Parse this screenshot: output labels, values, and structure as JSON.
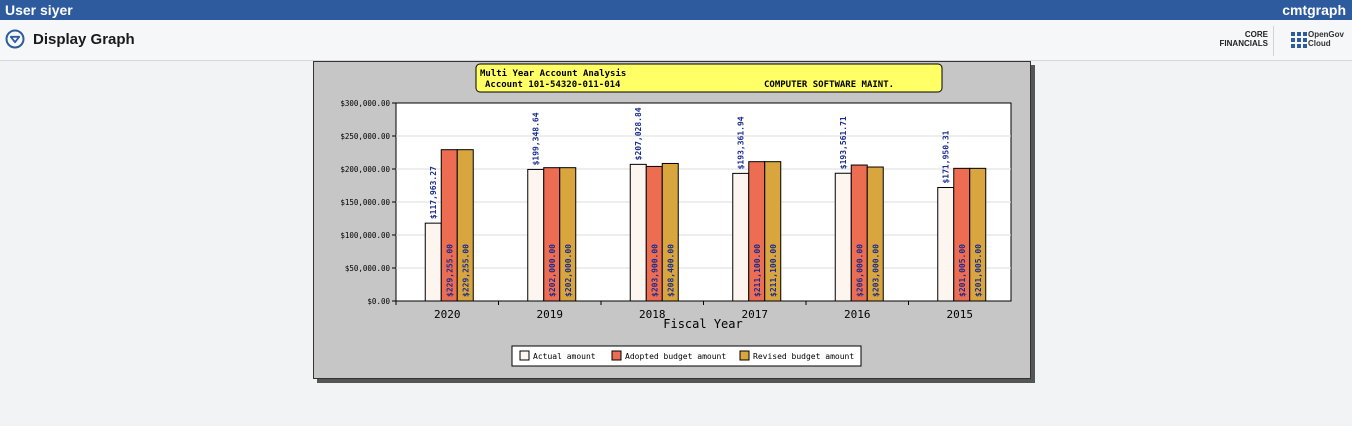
{
  "header": {
    "user": "User siyer",
    "program": "cmtgraph"
  },
  "titlebar": {
    "title": "Display Graph",
    "core_line1": "CORE",
    "core_line2": "FINANCIALS",
    "og_line1": "OpenGov",
    "og_line2": "Cloud"
  },
  "colors": {
    "actual": "#fdf5ef",
    "adopted": "#ec6d52",
    "revised": "#d8a53e",
    "label_text": "#1a2d8f"
  },
  "chart_data": {
    "type": "bar",
    "title_line1": "Multi Year Account Analysis",
    "title_line2": "Account 101-54320-011-014",
    "title_desc": "COMPUTER SOFTWARE MAINT.",
    "xlabel": "Fiscal Year",
    "ylabel": "",
    "ylim": [
      0,
      300000
    ],
    "yticks": [
      "$0.00",
      "$50,000.00",
      "$100,000.00",
      "$150,000.00",
      "$200,000.00",
      "$250,000.00",
      "$300,000.00"
    ],
    "categories": [
      "2020",
      "2019",
      "2018",
      "2017",
      "2016",
      "2015"
    ],
    "series": [
      {
        "name": "Actual amount",
        "values": [
          117963.27,
          199348.64,
          207028.84,
          193361.94,
          193561.71,
          171950.31
        ],
        "labels": [
          "$117,963.27",
          "$199,348.64",
          "$207,028.84",
          "$193,361.94",
          "$193,561.71",
          "$171,950.31"
        ]
      },
      {
        "name": "Adopted budget amount",
        "values": [
          229255.0,
          202000.0,
          203900.0,
          211100.0,
          206000.0,
          201005.0
        ],
        "labels": [
          "$229,255.00",
          "$202,000.00",
          "$203,900.00",
          "$211,100.00",
          "$206,000.00",
          "$201,005.00"
        ]
      },
      {
        "name": "Revised budget amount",
        "values": [
          229255.0,
          202000.0,
          208400.0,
          211100.0,
          203000.0,
          201005.0
        ],
        "labels": [
          "$229,255.00",
          "$202,000.00",
          "$208,400.00",
          "$211,100.00",
          "$203,000.00",
          "$201,005.00"
        ]
      }
    ],
    "legend_position": "bottom"
  }
}
